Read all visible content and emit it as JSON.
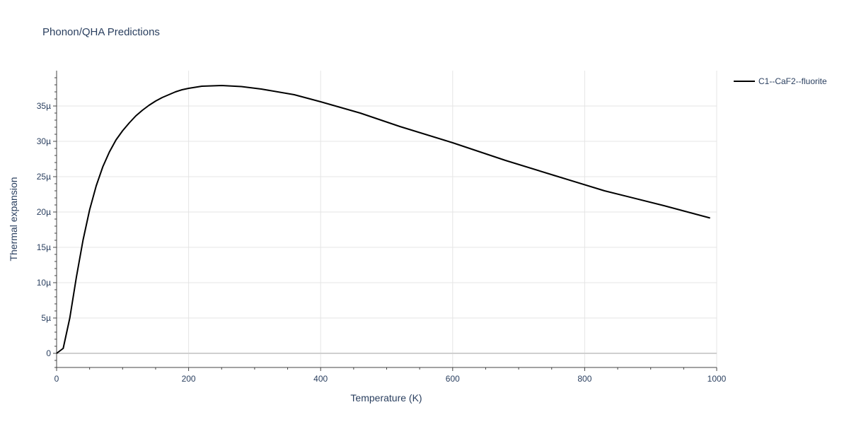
{
  "chart_data": {
    "type": "line",
    "title": "Phonon/QHA Predictions",
    "xlabel": "Temperature (K)",
    "ylabel": "Thermal expansion",
    "xlim": [
      0,
      1000
    ],
    "ylim": [
      -2,
      40
    ],
    "x_ticks": [
      0,
      200,
      400,
      600,
      800,
      1000
    ],
    "x_tick_labels": [
      "0",
      "200",
      "400",
      "600",
      "800",
      "1000"
    ],
    "y_ticks": [
      0,
      5,
      10,
      15,
      20,
      25,
      30,
      35
    ],
    "y_tick_labels": [
      "0",
      "5µ",
      "10µ",
      "15µ",
      "20µ",
      "25µ",
      "30µ",
      "35µ"
    ],
    "y_unit_note": "values in units of 1e-6 (µ)",
    "grid": true,
    "legend_position": "top-right, outside plot",
    "series": [
      {
        "name": "C1--CaF2--fluorite",
        "color": "#000000",
        "x": [
          0,
          10,
          20,
          30,
          40,
          50,
          60,
          70,
          80,
          90,
          100,
          110,
          120,
          130,
          140,
          150,
          160,
          170,
          180,
          190,
          200,
          220,
          250,
          280,
          310,
          360,
          400,
          460,
          520,
          600,
          680,
          760,
          830,
          920,
          990
        ],
        "y": [
          0,
          0.7,
          5.0,
          10.8,
          16.0,
          20.3,
          23.7,
          26.4,
          28.5,
          30.2,
          31.5,
          32.6,
          33.6,
          34.4,
          35.1,
          35.7,
          36.2,
          36.6,
          37.0,
          37.3,
          37.5,
          37.8,
          37.9,
          37.75,
          37.4,
          36.6,
          35.6,
          34.0,
          32.1,
          29.8,
          27.3,
          25.0,
          23.0,
          20.9,
          19.15
        ]
      }
    ]
  }
}
